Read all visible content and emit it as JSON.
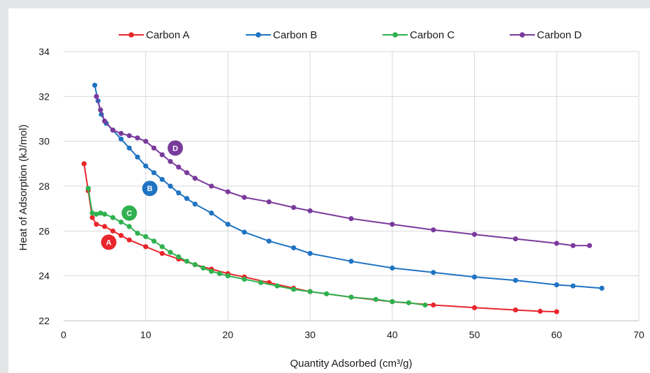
{
  "chart_data": {
    "type": "scatter",
    "title": "",
    "xlabel": "Quantity Adsorbed (cm³/g)",
    "ylabel": "Heat of Adsorption (kJ/mol)",
    "xlim": [
      0,
      70
    ],
    "ylim": [
      22,
      34
    ],
    "xticks": [
      "0",
      "10",
      "20",
      "30",
      "40",
      "50",
      "60",
      "70"
    ],
    "yticks": [
      "22",
      "24",
      "26",
      "28",
      "30",
      "32",
      "34"
    ],
    "grid": true,
    "legend_position": "top",
    "series": [
      {
        "name": "Carbon A",
        "color": "#e8262b",
        "badge": "A",
        "badge_at": [
          5.5,
          25.5
        ],
        "x": [
          2.5,
          3.0,
          3.5,
          4.0,
          5,
          6,
          7,
          8,
          10,
          12,
          14,
          16,
          18,
          20,
          22,
          25,
          28,
          30,
          35,
          40,
          45,
          50,
          55,
          58,
          60
        ],
        "y": [
          29.0,
          27.8,
          26.6,
          26.3,
          26.2,
          26.0,
          25.8,
          25.6,
          25.3,
          25.0,
          24.75,
          24.5,
          24.3,
          24.1,
          23.95,
          23.7,
          23.45,
          23.3,
          23.05,
          22.85,
          22.7,
          22.58,
          22.48,
          22.42,
          22.4
        ]
      },
      {
        "name": "Carbon B",
        "color": "#1f73c3",
        "badge": "B",
        "badge_at": [
          10.5,
          27.9
        ],
        "x": [
          3.8,
          4.2,
          4.6,
          5.2,
          6,
          7,
          8,
          9,
          10,
          11,
          12,
          13,
          14,
          15,
          16,
          18,
          20,
          22,
          25,
          28,
          30,
          35,
          40,
          45,
          50,
          55,
          60,
          62,
          65.5
        ],
        "y": [
          32.5,
          31.8,
          31.2,
          30.8,
          30.5,
          30.1,
          29.7,
          29.3,
          28.9,
          28.6,
          28.3,
          28.0,
          27.7,
          27.45,
          27.2,
          26.8,
          26.3,
          25.95,
          25.55,
          25.25,
          25.0,
          24.65,
          24.35,
          24.15,
          23.95,
          23.8,
          23.6,
          23.55,
          23.45
        ]
      },
      {
        "name": "Carbon C",
        "color": "#2fb14f",
        "badge": "C",
        "badge_at": [
          8.0,
          26.8
        ],
        "x": [
          3.0,
          3.5,
          4.0,
          4.5,
          5,
          6,
          7,
          8,
          9,
          10,
          11,
          12,
          13,
          14,
          15,
          16,
          17,
          18,
          19,
          20,
          22,
          24,
          26,
          28,
          30,
          32,
          35,
          38,
          40,
          42,
          44
        ],
        "y": [
          27.9,
          26.8,
          26.75,
          26.8,
          26.75,
          26.6,
          26.4,
          26.2,
          25.9,
          25.75,
          25.55,
          25.3,
          25.05,
          24.85,
          24.65,
          24.5,
          24.35,
          24.2,
          24.1,
          24.0,
          23.85,
          23.7,
          23.55,
          23.4,
          23.3,
          23.2,
          23.05,
          22.95,
          22.85,
          22.8,
          22.7
        ]
      },
      {
        "name": "Carbon D",
        "color": "#7a3a9c",
        "badge": "D",
        "badge_at": [
          13.6,
          29.7
        ],
        "x": [
          4.0,
          4.5,
          5.0,
          6,
          7,
          8,
          9,
          10,
          11,
          12,
          13,
          14,
          15,
          16,
          18,
          20,
          22,
          25,
          28,
          30,
          35,
          40,
          45,
          50,
          55,
          60,
          62,
          64
        ],
        "y": [
          32.0,
          31.4,
          30.9,
          30.5,
          30.35,
          30.25,
          30.15,
          30.0,
          29.7,
          29.4,
          29.1,
          28.85,
          28.6,
          28.35,
          28.0,
          27.75,
          27.5,
          27.3,
          27.05,
          26.9,
          26.55,
          26.3,
          26.05,
          25.85,
          25.65,
          25.45,
          25.35,
          25.35
        ]
      }
    ]
  }
}
